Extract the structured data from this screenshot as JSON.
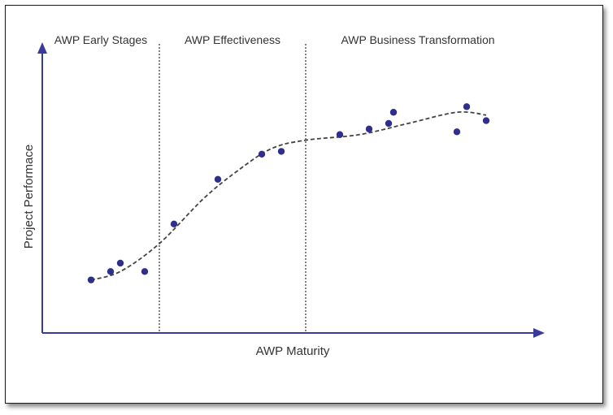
{
  "chart_data": {
    "type": "scatter",
    "title": "",
    "xlabel": "AWP Maturity",
    "ylabel": "Project Performace",
    "xlim": [
      0,
      100
    ],
    "ylim": [
      0,
      100
    ],
    "grid": false,
    "stages": [
      {
        "label": "AWP Early Stages",
        "x_end": 24
      },
      {
        "label": "AWP Effectiveness",
        "x_end": 54
      },
      {
        "label": "AWP Business Transformation",
        "x_end": 100
      }
    ],
    "series": [
      {
        "points": [
          {
            "x": 10,
            "y": 19
          },
          {
            "x": 14,
            "y": 22
          },
          {
            "x": 16,
            "y": 25
          },
          {
            "x": 21,
            "y": 22
          },
          {
            "x": 27,
            "y": 39
          },
          {
            "x": 36,
            "y": 55
          },
          {
            "x": 45,
            "y": 64
          },
          {
            "x": 49,
            "y": 65
          },
          {
            "x": 61,
            "y": 71
          },
          {
            "x": 67,
            "y": 73
          },
          {
            "x": 71,
            "y": 75
          },
          {
            "x": 72,
            "y": 79
          },
          {
            "x": 85,
            "y": 72
          },
          {
            "x": 87,
            "y": 81
          },
          {
            "x": 91,
            "y": 76
          }
        ]
      }
    ],
    "trend": [
      {
        "x": 10,
        "y": 19
      },
      {
        "x": 16,
        "y": 22
      },
      {
        "x": 24,
        "y": 32
      },
      {
        "x": 33,
        "y": 48
      },
      {
        "x": 40,
        "y": 58
      },
      {
        "x": 47,
        "y": 66
      },
      {
        "x": 54,
        "y": 69
      },
      {
        "x": 65,
        "y": 71
      },
      {
        "x": 75,
        "y": 75
      },
      {
        "x": 85,
        "y": 79
      },
      {
        "x": 91,
        "y": 78
      }
    ],
    "colors": {
      "axis": "#3a3a9a",
      "points": "#2e2e8c",
      "trend": "#444444",
      "divider": "#333333"
    }
  }
}
